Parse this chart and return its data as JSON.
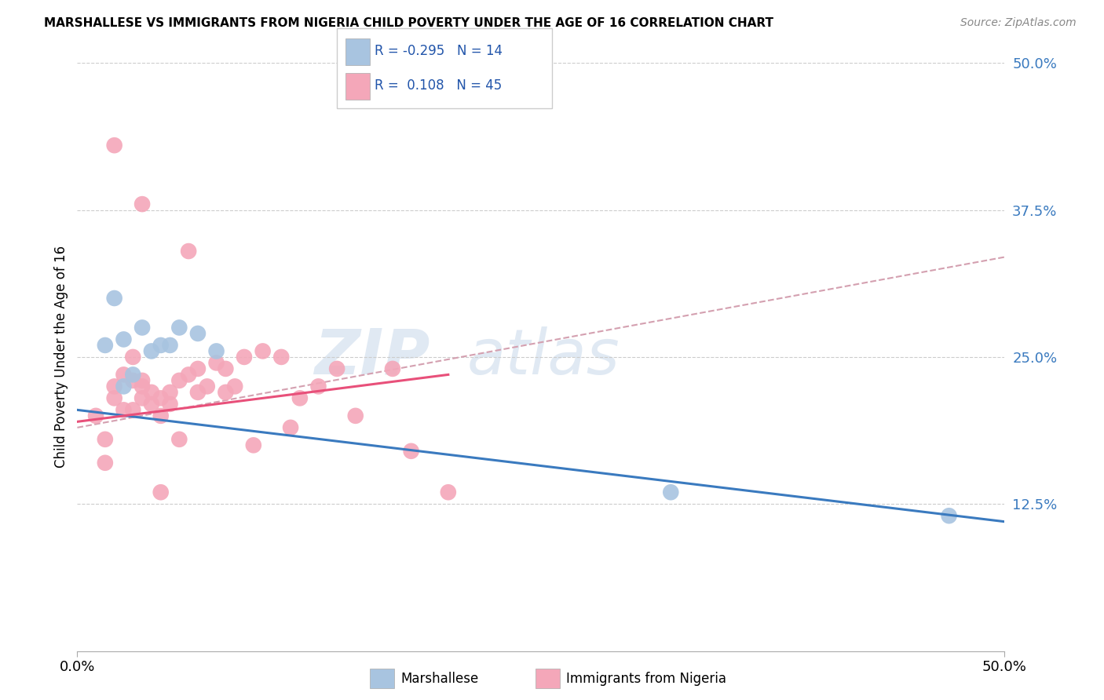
{
  "title": "MARSHALLESE VS IMMIGRANTS FROM NIGERIA CHILD POVERTY UNDER THE AGE OF 16 CORRELATION CHART",
  "source": "Source: ZipAtlas.com",
  "ylabel": "Child Poverty Under the Age of 16",
  "xlim": [
    0,
    50
  ],
  "ylim": [
    0,
    50
  ],
  "yticks": [
    0,
    12.5,
    25.0,
    37.5,
    50.0
  ],
  "ytick_labels": [
    "",
    "12.5%",
    "25.0%",
    "37.5%",
    "50.0%"
  ],
  "xticks": [
    0,
    50
  ],
  "watermark": "ZIPatlas",
  "blue_color": "#a8c4e0",
  "pink_color": "#f4a7b9",
  "blue_line_color": "#3a7abf",
  "pink_line_color": "#e8507a",
  "dashed_line_color": "#d4a0b0",
  "blue_scatter": [
    [
      1.5,
      26.0
    ],
    [
      2.0,
      30.0
    ],
    [
      2.5,
      26.5
    ],
    [
      3.5,
      27.5
    ],
    [
      4.5,
      26.0
    ],
    [
      5.5,
      27.5
    ],
    [
      6.5,
      27.0
    ],
    [
      7.5,
      25.5
    ],
    [
      2.5,
      22.5
    ],
    [
      3.0,
      23.5
    ],
    [
      4.0,
      25.5
    ],
    [
      5.0,
      26.0
    ],
    [
      32.0,
      13.5
    ],
    [
      47.0,
      11.5
    ]
  ],
  "pink_scatter": [
    [
      1.0,
      20.0
    ],
    [
      1.5,
      18.0
    ],
    [
      1.5,
      16.0
    ],
    [
      2.0,
      21.5
    ],
    [
      2.0,
      22.5
    ],
    [
      2.5,
      20.5
    ],
    [
      2.5,
      23.5
    ],
    [
      3.0,
      20.5
    ],
    [
      3.0,
      23.0
    ],
    [
      3.0,
      25.0
    ],
    [
      3.5,
      21.5
    ],
    [
      3.5,
      23.0
    ],
    [
      3.5,
      22.5
    ],
    [
      4.0,
      21.0
    ],
    [
      4.0,
      22.0
    ],
    [
      4.5,
      21.5
    ],
    [
      4.5,
      20.0
    ],
    [
      5.0,
      21.0
    ],
    [
      5.0,
      22.0
    ],
    [
      5.5,
      23.0
    ],
    [
      6.0,
      23.5
    ],
    [
      6.5,
      22.0
    ],
    [
      6.5,
      24.0
    ],
    [
      7.0,
      22.5
    ],
    [
      7.5,
      24.5
    ],
    [
      8.0,
      24.0
    ],
    [
      8.0,
      22.0
    ],
    [
      8.5,
      22.5
    ],
    [
      9.0,
      25.0
    ],
    [
      9.5,
      17.5
    ],
    [
      10.0,
      25.5
    ],
    [
      11.0,
      25.0
    ],
    [
      11.5,
      19.0
    ],
    [
      12.0,
      21.5
    ],
    [
      13.0,
      22.5
    ],
    [
      14.0,
      24.0
    ],
    [
      15.0,
      20.0
    ],
    [
      17.0,
      24.0
    ],
    [
      18.0,
      17.0
    ],
    [
      2.0,
      43.0
    ],
    [
      3.5,
      38.0
    ],
    [
      6.0,
      34.0
    ],
    [
      4.5,
      13.5
    ],
    [
      5.5,
      18.0
    ],
    [
      20.0,
      13.5
    ]
  ],
  "blue_trendline": [
    [
      0,
      20.5
    ],
    [
      50,
      11.0
    ]
  ],
  "pink_trendline": [
    [
      0,
      19.5
    ],
    [
      20,
      23.5
    ]
  ],
  "dashed_trendline": [
    [
      0,
      19.0
    ],
    [
      50,
      33.5
    ]
  ]
}
